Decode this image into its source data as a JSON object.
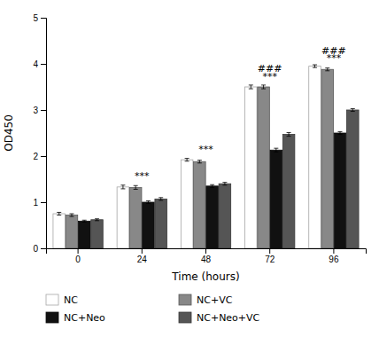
{
  "chart_data": {
    "type": "bar",
    "xlabel": "Time (hours)",
    "ylabel": "OD450",
    "categories": [
      "0",
      "24",
      "48",
      "72",
      "96"
    ],
    "series": [
      {
        "name": "NC",
        "color": "#ffffff",
        "values": [
          0.75,
          1.33,
          1.92,
          3.5,
          3.95
        ],
        "errors": [
          0.03,
          0.04,
          0.03,
          0.04,
          0.03
        ]
      },
      {
        "name": "NC+VC",
        "color": "#888888",
        "values": [
          0.72,
          1.32,
          1.88,
          3.5,
          3.88
        ],
        "errors": [
          0.03,
          0.04,
          0.03,
          0.04,
          0.03
        ]
      },
      {
        "name": "NC+Neo",
        "color": "#111111",
        "values": [
          0.59,
          1.0,
          1.35,
          2.13,
          2.5
        ],
        "errors": [
          0.02,
          0.03,
          0.03,
          0.04,
          0.03
        ]
      },
      {
        "name": "NC+Neo+VC",
        "color": "#555555",
        "values": [
          0.62,
          1.07,
          1.4,
          2.47,
          3.0
        ],
        "errors": [
          0.02,
          0.03,
          0.03,
          0.04,
          0.03
        ]
      }
    ],
    "annotations": [
      {
        "text": "***",
        "x": "24",
        "y": 1.5
      },
      {
        "text": "***",
        "x": "48",
        "y": 2.08
      },
      {
        "text": "###",
        "x": "72",
        "y": 3.82
      },
      {
        "text": "***",
        "x": "72",
        "y": 3.65
      },
      {
        "text": "###",
        "x": "96",
        "y": 4.22
      },
      {
        "text": "***",
        "x": "96",
        "y": 4.05
      }
    ],
    "ylim": [
      0,
      5
    ],
    "yticks": [
      0,
      1,
      2,
      3,
      4,
      5
    ],
    "grid": false,
    "legend": "bottom"
  }
}
